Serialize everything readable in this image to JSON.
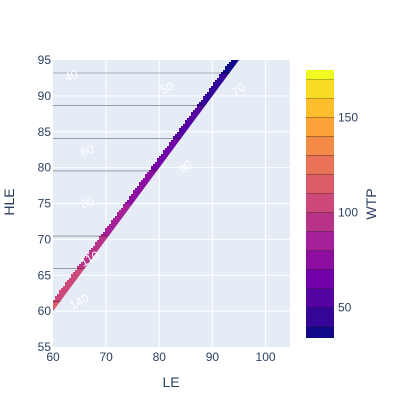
{
  "chart_data": {
    "type": "contour",
    "title": "",
    "xlabel": "LE",
    "ylabel": "HLE",
    "colorbar_title": "WTP",
    "xlim": [
      60,
      104.6
    ],
    "ylim": [
      55,
      95
    ],
    "x_ticks": [
      "60",
      "70",
      "80",
      "90",
      "100"
    ],
    "y_ticks": [
      "55",
      "60",
      "65",
      "70",
      "75",
      "80",
      "85",
      "90",
      "95"
    ],
    "colorbar_range": [
      34,
      175
    ],
    "colorbar_ticks": [
      "50",
      "100",
      "150"
    ],
    "contour_start": 40,
    "contour_step": 10,
    "contour_levels": [
      40,
      50,
      60,
      70,
      80,
      90,
      100,
      110,
      120,
      130,
      140,
      150,
      160,
      170
    ],
    "region": "HLE <= LE",
    "contour_labels": [
      {
        "text": "40",
        "x": 63.5,
        "y": 92.7,
        "angle": -22
      },
      {
        "text": "50",
        "x": 81.5,
        "y": 91.0,
        "angle": -23
      },
      {
        "text": "70",
        "x": 95.0,
        "y": 90.8,
        "angle": -35
      },
      {
        "text": "60",
        "x": 66.5,
        "y": 82.3,
        "angle": -20
      },
      {
        "text": "90",
        "x": 85.0,
        "y": 80.0,
        "angle": -35
      },
      {
        "text": "80",
        "x": 66.5,
        "y": 75.0,
        "angle": -20
      },
      {
        "text": "110",
        "x": 67.0,
        "y": 67.2,
        "angle": -28
      },
      {
        "text": "140",
        "x": 65.0,
        "y": 61.2,
        "angle": -28
      }
    ],
    "colorscale": [
      "#0d0887",
      "#46039f",
      "#7201a8",
      "#9c179e",
      "#bd3786",
      "#d8576b",
      "#ed7953",
      "#fb9f3a",
      "#fdca26",
      "#f0f921"
    ],
    "plot_background": "#e5ecf6",
    "gridline_color": "#ffffff"
  }
}
